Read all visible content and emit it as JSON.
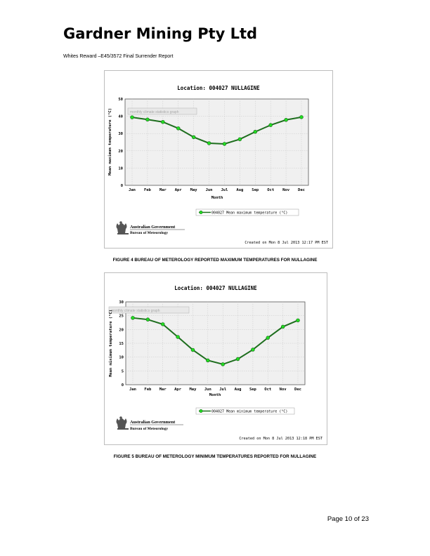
{
  "header": {
    "company": "Gardner Mining Pty Ltd",
    "report": "Whites Reward –E45/3572 Final Surrender Report"
  },
  "figures": [
    {
      "caption": "FIGURE 4 BUREAU OF METEROLOGY REPORTED MAXIMUM TEMPERATURES FOR NULLAGINE",
      "title": "Location: 004027 NULLAGINE",
      "watermark": "monthly climate statistics graph",
      "legend": "004027 Mean maximum temperature (°C)",
      "created": "Created on Mon  8 Jul 2013 12:17 PM EST",
      "gov_line1": "Australian Government",
      "gov_line2": "Bureau of Meteorology"
    },
    {
      "caption": "FIGURE 5 BUREAU OF METEROLOGY MINIMUM TEMPERATURES REPORTED FOR NULLAGINE",
      "title": "Location: 004027 NULLAGINE",
      "watermark": "monthly climate statistics graph",
      "legend": "004027 Mean minimum temperature (°C)",
      "created": "Created on Mon  8 Jul 2013 12:18 PM EST",
      "gov_line1": "Australian Government",
      "gov_line2": "Bureau of Meteorology"
    }
  ],
  "chart_data": [
    {
      "type": "line",
      "title": "Location: 004027 NULLAGINE",
      "xlabel": "Month",
      "ylabel": "Mean maximum temperature (°C)",
      "categories": [
        "Jan",
        "Feb",
        "Mar",
        "Apr",
        "May",
        "Jun",
        "Jul",
        "Aug",
        "Sep",
        "Oct",
        "Nov",
        "Dec"
      ],
      "series": [
        {
          "name": "004027 Mean maximum temperature (°C)",
          "values": [
            39.4,
            38.1,
            36.7,
            33.0,
            27.9,
            24.4,
            24.0,
            26.7,
            31.0,
            34.9,
            37.9,
            39.5
          ]
        }
      ],
      "yticks": [
        0,
        10,
        20,
        30,
        40,
        50
      ],
      "ylim": [
        0,
        50
      ],
      "grid": true,
      "legend_position": "bottom"
    },
    {
      "type": "line",
      "title": "Location: 004027 NULLAGINE",
      "xlabel": "Month",
      "ylabel": "Mean minimum temperature (°C)",
      "categories": [
        "Jan",
        "Feb",
        "Mar",
        "Apr",
        "May",
        "Jun",
        "Jul",
        "Aug",
        "Sep",
        "Oct",
        "Nov",
        "Dec"
      ],
      "series": [
        {
          "name": "004027 Mean minimum temperature (°C)",
          "values": [
            24.2,
            23.6,
            21.9,
            17.3,
            12.6,
            8.8,
            7.4,
            9.3,
            12.7,
            17.0,
            21.0,
            23.3
          ]
        }
      ],
      "yticks": [
        0,
        5,
        10,
        15,
        20,
        25,
        30
      ],
      "ylim": [
        0,
        30
      ],
      "grid": true,
      "legend_position": "bottom"
    }
  ],
  "colors": {
    "line": "#1e6e1e",
    "marker": "#22dd22",
    "plot_bg": "#f0f0f0",
    "grid": "#c8c8c8"
  },
  "footer": {
    "page": "Page 10 of 23"
  }
}
